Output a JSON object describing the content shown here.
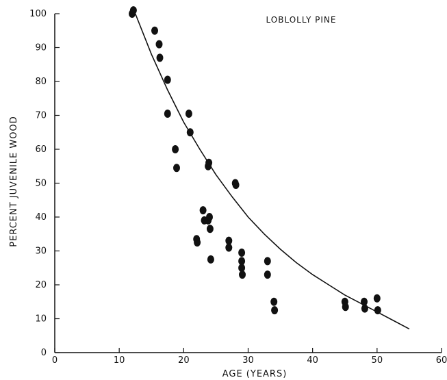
{
  "chart_data": {
    "type": "scatter",
    "title": "LOBLOLLY PINE",
    "xlabel": "AGE (YEARS)",
    "ylabel": "PERCENT JUVENILE WOOD",
    "xlim": [
      0,
      60
    ],
    "ylim": [
      0,
      100
    ],
    "x_ticks": [
      0,
      10,
      20,
      30,
      40,
      50,
      60
    ],
    "y_ticks": [
      0,
      10,
      20,
      30,
      40,
      50,
      60,
      70,
      80,
      90,
      100
    ],
    "x_tick_labels": [
      "0",
      "10",
      "20",
      "30",
      "40",
      "50",
      "60"
    ],
    "y_tick_labels": [
      "0",
      "10",
      "20",
      "30",
      "40",
      "50",
      "60",
      "70",
      "80",
      "90",
      "100"
    ],
    "grid": false,
    "colors": {
      "points": "#111111",
      "curve": "#111111",
      "axes": "#111111"
    },
    "series": [
      {
        "type": "scatter",
        "points": [
          [
            12,
            100
          ],
          [
            12.2,
            101
          ],
          [
            15.5,
            95
          ],
          [
            16.2,
            91
          ],
          [
            16.3,
            87
          ],
          [
            17.5,
            80.5
          ],
          [
            17.5,
            70.5
          ],
          [
            18.7,
            60
          ],
          [
            18.9,
            54.5
          ],
          [
            20.8,
            70.5
          ],
          [
            21,
            65
          ],
          [
            22,
            33.5
          ],
          [
            22.1,
            32.5
          ],
          [
            23,
            42
          ],
          [
            23.2,
            39
          ],
          [
            23.8,
            39
          ],
          [
            23.8,
            55
          ],
          [
            23.9,
            56
          ],
          [
            24,
            40
          ],
          [
            24.1,
            36.5
          ],
          [
            24.2,
            27.5
          ],
          [
            27,
            33
          ],
          [
            27,
            31
          ],
          [
            28,
            50
          ],
          [
            28.1,
            49.5
          ],
          [
            29,
            29.5
          ],
          [
            29,
            27
          ],
          [
            29,
            25
          ],
          [
            29.1,
            23
          ],
          [
            33,
            27
          ],
          [
            33,
            23
          ],
          [
            34,
            15
          ],
          [
            34.1,
            12.5
          ],
          [
            45,
            15
          ],
          [
            45.1,
            13.5
          ],
          [
            48,
            15
          ],
          [
            48.1,
            13
          ],
          [
            50,
            16
          ],
          [
            50.1,
            12.5
          ]
        ]
      },
      {
        "type": "line",
        "points": [
          [
            12.5,
            100
          ],
          [
            15,
            88
          ],
          [
            17.5,
            77.5
          ],
          [
            20,
            68
          ],
          [
            22.5,
            60
          ],
          [
            25,
            52.5
          ],
          [
            27.5,
            46
          ],
          [
            30,
            40
          ],
          [
            32.5,
            35
          ],
          [
            35,
            30.5
          ],
          [
            37.5,
            26.5
          ],
          [
            40,
            23
          ],
          [
            42.5,
            20
          ],
          [
            45,
            17
          ],
          [
            47.5,
            14.5
          ],
          [
            50,
            12
          ],
          [
            52.5,
            9.5
          ],
          [
            55,
            7
          ]
        ]
      }
    ]
  }
}
